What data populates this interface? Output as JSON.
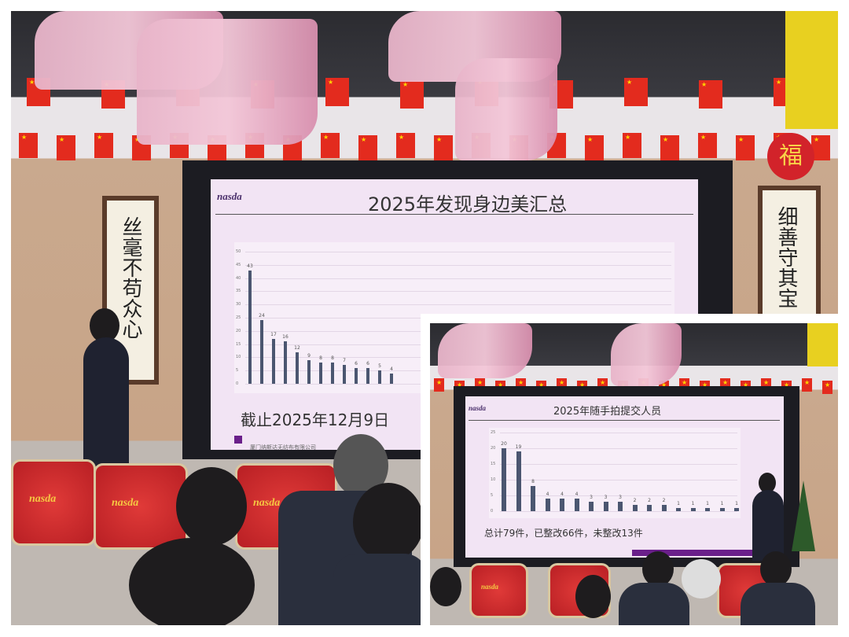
{
  "main_photo": {
    "slide": {
      "logo": "nasda",
      "title": "2025年发现身边美汇总",
      "caption": "截止2025年12月9日",
      "footer": "厦门纳斯达无纺布有限公司"
    },
    "drum_logo": "nasda",
    "scroll_text": "丝毫不苟众心",
    "right_scroll_text": "细善守其宝",
    "fu_char": "福"
  },
  "inset_photo": {
    "slide": {
      "logo": "nasda",
      "title": "2025年随手拍提交人员",
      "caption": "总计79件，已整改66件，未整改13件"
    },
    "drum_logo": "nasda"
  },
  "colors": {
    "flag": "#e32b1e",
    "slide_bg": "#f2e4f4",
    "bar": "#4b5670",
    "drum": "#c8262a"
  },
  "chart_data": [
    {
      "type": "bar",
      "title": "2025年发现身边美汇总",
      "ylim": [
        0,
        50
      ],
      "yticks": [
        0,
        5,
        10,
        15,
        20,
        25,
        30,
        35,
        40,
        45,
        50
      ],
      "values": [
        43,
        24,
        17,
        16,
        12,
        9,
        8,
        8,
        7,
        6,
        6,
        5,
        4
      ]
    },
    {
      "type": "bar",
      "title": "2025年随手拍提交人员",
      "ylim": [
        0,
        25
      ],
      "yticks": [
        0,
        5,
        10,
        15,
        20,
        25
      ],
      "values": [
        20,
        19,
        8,
        4,
        4,
        4,
        3,
        3,
        3,
        2,
        2,
        2,
        1,
        1,
        1,
        1,
        1
      ]
    }
  ]
}
